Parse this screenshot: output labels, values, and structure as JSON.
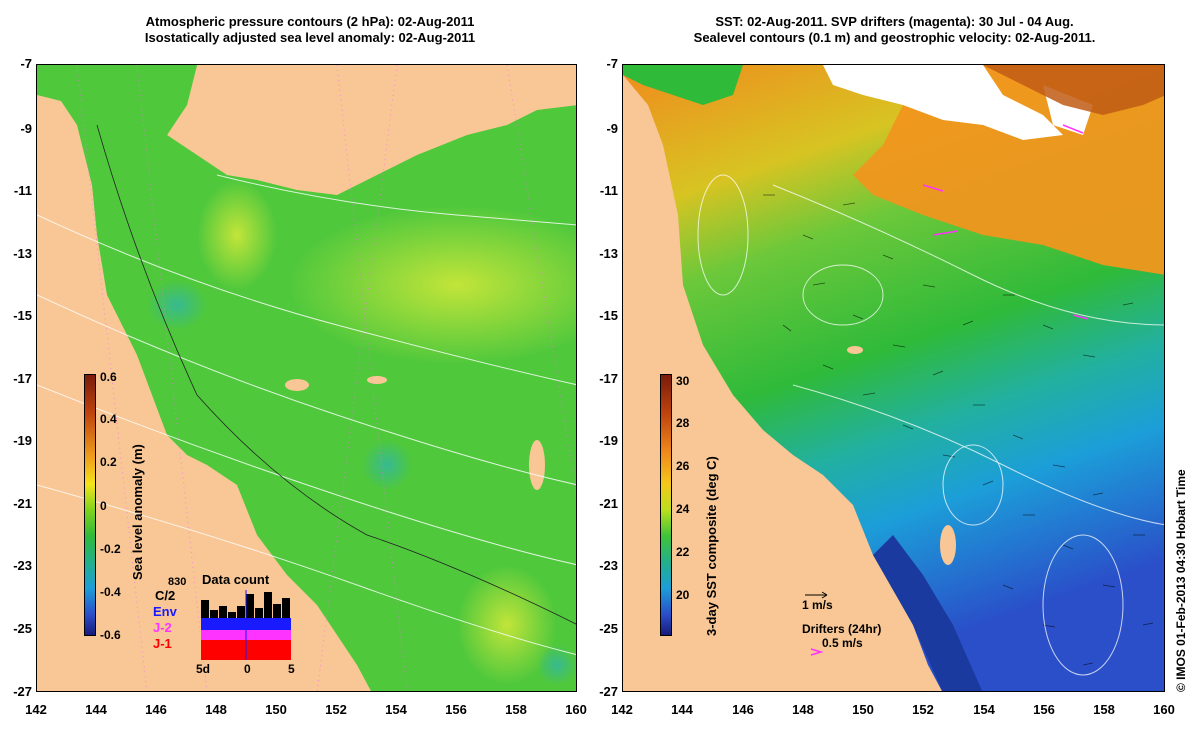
{
  "left_panel": {
    "title_line1": "Atmospheric pressure contours (2 hPa): 02-Aug-2011",
    "title_line2": "Isostatically adjusted sea level anomaly: 02-Aug-2011",
    "colorbar": {
      "label": "Sea level anomaly (m)",
      "ticks": [
        "0.6",
        "0.4",
        "0.2",
        "0",
        "-0.2",
        "-0.4",
        "-0.6"
      ],
      "colors": [
        "#7a1b0c",
        "#c0440e",
        "#f0a11d",
        "#f5e41a",
        "#7fd21d",
        "#2fba3a",
        "#22b08a",
        "#1c9ed8",
        "#2a4fc9",
        "#1a1a7a"
      ]
    },
    "data_count": {
      "title": "Data count",
      "max_label": "830",
      "legend": [
        {
          "label": "C/2",
          "color": "#000000"
        },
        {
          "label": "Env",
          "color": "#1a1aff"
        },
        {
          "label": "J-2",
          "color": "#ff33ff"
        },
        {
          "label": "J-1",
          "color": "#ff0000"
        }
      ],
      "axis_ticks": [
        "5d",
        "0",
        "5"
      ]
    }
  },
  "right_panel": {
    "title_line1": "SST: 02-Aug-2011. SVP drifters (magenta): 30 Jul - 04 Aug.",
    "title_line2": "Sealevel contours (0.1 m) and geostrophic velocity: 02-Aug-2011.",
    "colorbar": {
      "label": "3-day SST composite (deg C)",
      "ticks": [
        "30",
        "28",
        "26",
        "24",
        "22",
        "20"
      ],
      "colors": [
        "#7a1b0c",
        "#c0440e",
        "#f08a1d",
        "#f5c81a",
        "#b9e01d",
        "#3fc33a",
        "#22b08a",
        "#1c9ed8",
        "#2a4fc9",
        "#1a1a7a"
      ]
    },
    "velocity_scale_label": "1 m/s",
    "drifters_label": "Drifters (24hr)",
    "drifters_scale": "0.5 m/s"
  },
  "axes": {
    "x_ticks": [
      "142",
      "144",
      "146",
      "148",
      "150",
      "152",
      "154",
      "156",
      "158",
      "160"
    ],
    "y_ticks": [
      "-7",
      "-9",
      "-11",
      "-13",
      "-15",
      "-17",
      "-19",
      "-21",
      "-23",
      "-25",
      "-27"
    ]
  },
  "colors": {
    "land": "#f9c795",
    "sea_green": "#4fc83c",
    "sea_light": "#b9e23a",
    "sst_orange": "#f0961d",
    "sst_blue": "#2a6fd8",
    "magenta": "#ff33ff"
  },
  "copyright": "© IMOS 01-Feb-2013 04:30 Hobart Time"
}
